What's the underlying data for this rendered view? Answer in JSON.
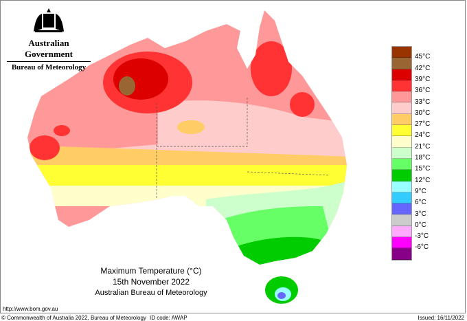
{
  "header": {
    "government": "Australian Government",
    "agency": "Bureau of Meteorology"
  },
  "title": {
    "line1": "Maximum Temperature (°C)",
    "line2": "15th November 2022",
    "line3": "Australian Bureau of Meteorology"
  },
  "footer": {
    "url": "http://www.bom.gov.au",
    "copyright": "© Commonwealth of Australia 2022, Bureau of Meteorology",
    "id_code": "ID code: AWAP",
    "issued": "Issued: 16/11/2022"
  },
  "legend": {
    "colors": [
      "#993300",
      "#996633",
      "#dd0000",
      "#ff3333",
      "#ff9999",
      "#ffcccc",
      "#ffcc66",
      "#ffff33",
      "#ffffcc",
      "#ccffcc",
      "#66ff66",
      "#00cc00",
      "#99ffff",
      "#33ccff",
      "#6666ff",
      "#cccccc",
      "#ffaaff",
      "#ff00ff",
      "#880088"
    ],
    "labels": [
      "45°C",
      "42°C",
      "39°C",
      "36°C",
      "33°C",
      "30°C",
      "27°C",
      "24°C",
      "21°C",
      "18°C",
      "15°C",
      "12°C",
      "9°C",
      "6°C",
      "3°C",
      "0°C",
      "-3°C",
      "-6°C"
    ]
  }
}
